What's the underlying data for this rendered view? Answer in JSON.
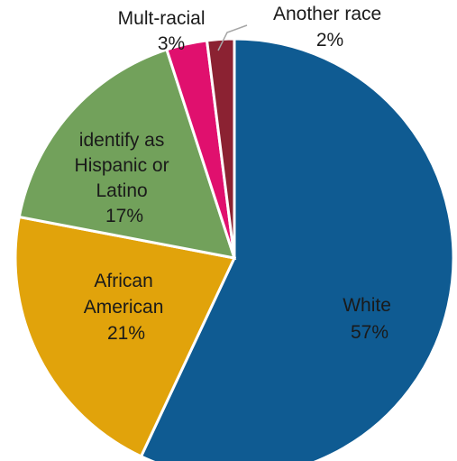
{
  "chart_data": {
    "type": "pie",
    "title": "",
    "slices": [
      {
        "label": "White",
        "value": 57,
        "value_label": "57%",
        "color": "#0f5b92"
      },
      {
        "label": "African American",
        "value": 21,
        "value_label": "21%",
        "color": "#e1a30b"
      },
      {
        "label": "identify as Hispanic or Latino",
        "value": 17,
        "value_label": "17%",
        "color": "#72a15b"
      },
      {
        "label": "Mult-racial",
        "value": 3,
        "value_label": "3%",
        "color": "#e0106e"
      },
      {
        "label": "Another race",
        "value": 2,
        "value_label": "2%",
        "color": "#8b2232"
      }
    ],
    "start_angle_deg": 0,
    "direction": "clockwise",
    "labels": {
      "white": [
        "White",
        "57%"
      ],
      "african_american": [
        "African",
        "American",
        "21%"
      ],
      "hispanic": [
        "identify as",
        "Hispanic or",
        "Latino",
        "17%"
      ],
      "multiracial": [
        "Mult-racial",
        "3%"
      ],
      "another": [
        "Another race",
        "2%"
      ]
    }
  }
}
